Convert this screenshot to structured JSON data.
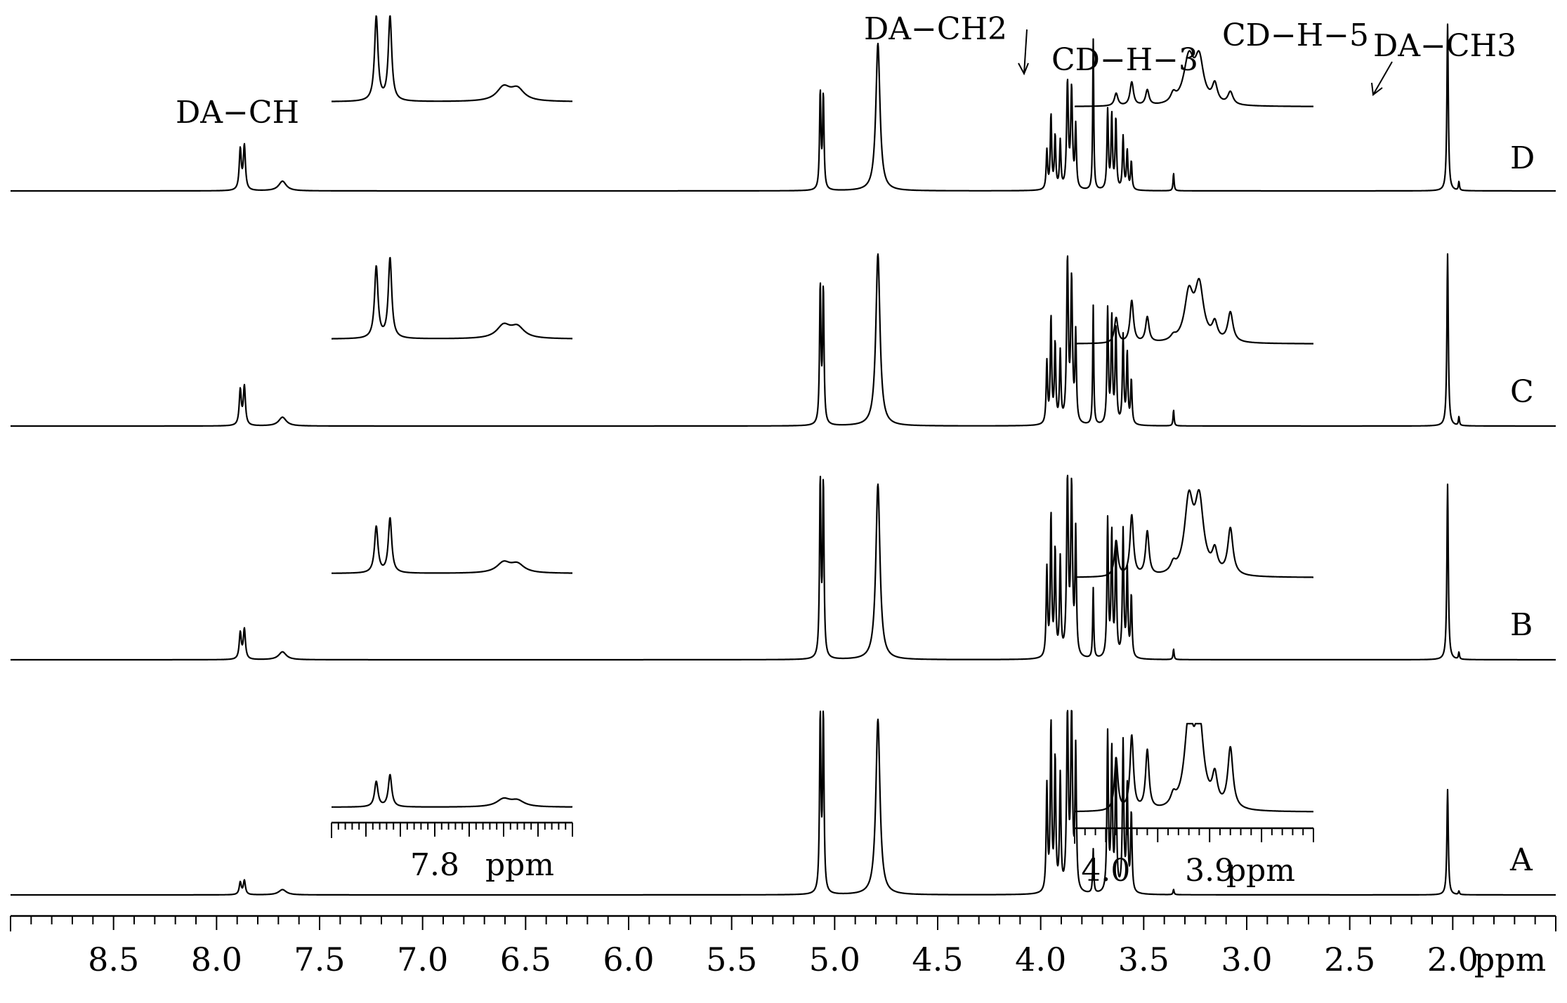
{
  "chart_data": {
    "type": "line",
    "x_axis": {
      "range": [
        9.0,
        1.5
      ],
      "reversed": true,
      "unit_label": "ppm",
      "major_ticks": [
        8.5,
        8.0,
        7.5,
        7.0,
        6.5,
        6.0,
        5.5,
        5.0,
        4.5,
        4.0,
        3.5,
        3.0,
        2.5,
        2.0
      ],
      "tick_labels": [
        "8.5",
        "8.0",
        "7.5",
        "7.0",
        "6.5",
        "6.0",
        "5.5",
        "5.0",
        "4.5",
        "4.0",
        "3.5",
        "3.0",
        "2.5",
        "2.0"
      ],
      "minor_step": 0.1
    },
    "grid": false,
    "legend": "none",
    "spectra": [
      {
        "label": "D",
        "peaks": [
          {
            "ppm": 7.885,
            "h": 0.23,
            "w": 0.006
          },
          {
            "ppm": 7.865,
            "h": 0.25,
            "w": 0.006
          },
          {
            "ppm": 7.68,
            "h": 0.055,
            "w": 0.022
          },
          {
            "ppm": 5.07,
            "h": 0.55,
            "w": 0.004
          },
          {
            "ppm": 5.055,
            "h": 0.53,
            "w": 0.004
          },
          {
            "ppm": 4.79,
            "h": 0.84,
            "w": 0.012
          },
          {
            "ppm": 3.97,
            "h": 0.22,
            "w": 0.004
          },
          {
            "ppm": 3.95,
            "h": 0.42,
            "w": 0.004
          },
          {
            "ppm": 3.93,
            "h": 0.3,
            "w": 0.004
          },
          {
            "ppm": 3.905,
            "h": 0.27,
            "w": 0.004
          },
          {
            "ppm": 3.87,
            "h": 0.6,
            "w": 0.005
          },
          {
            "ppm": 3.85,
            "h": 0.56,
            "w": 0.005
          },
          {
            "ppm": 3.83,
            "h": 0.35,
            "w": 0.004
          },
          {
            "ppm": 3.745,
            "h": 0.86,
            "w": 0.003
          },
          {
            "ppm": 3.675,
            "h": 0.45,
            "w": 0.004
          },
          {
            "ppm": 3.655,
            "h": 0.42,
            "w": 0.004
          },
          {
            "ppm": 3.635,
            "h": 0.4,
            "w": 0.004
          },
          {
            "ppm": 3.6,
            "h": 0.3,
            "w": 0.004
          },
          {
            "ppm": 3.58,
            "h": 0.22,
            "w": 0.004
          },
          {
            "ppm": 3.56,
            "h": 0.16,
            "w": 0.004
          },
          {
            "ppm": 3.355,
            "h": 0.1,
            "w": 0.003
          },
          {
            "ppm": 2.025,
            "h": 0.95,
            "w": 0.004
          },
          {
            "ppm": 1.97,
            "h": 0.05,
            "w": 0.003
          }
        ]
      },
      {
        "label": "C",
        "peaks": [
          {
            "ppm": 7.885,
            "h": 0.2,
            "w": 0.006
          },
          {
            "ppm": 7.865,
            "h": 0.22,
            "w": 0.006
          },
          {
            "ppm": 7.68,
            "h": 0.05,
            "w": 0.022
          },
          {
            "ppm": 5.07,
            "h": 0.78,
            "w": 0.004
          },
          {
            "ppm": 5.055,
            "h": 0.76,
            "w": 0.004
          },
          {
            "ppm": 4.79,
            "h": 0.98,
            "w": 0.012
          },
          {
            "ppm": 3.97,
            "h": 0.35,
            "w": 0.004
          },
          {
            "ppm": 3.95,
            "h": 0.6,
            "w": 0.004
          },
          {
            "ppm": 3.93,
            "h": 0.45,
            "w": 0.004
          },
          {
            "ppm": 3.905,
            "h": 0.4,
            "w": 0.004
          },
          {
            "ppm": 3.87,
            "h": 0.92,
            "w": 0.005
          },
          {
            "ppm": 3.85,
            "h": 0.8,
            "w": 0.005
          },
          {
            "ppm": 3.83,
            "h": 0.5,
            "w": 0.004
          },
          {
            "ppm": 3.745,
            "h": 0.68,
            "w": 0.003
          },
          {
            "ppm": 3.675,
            "h": 0.65,
            "w": 0.004
          },
          {
            "ppm": 3.655,
            "h": 0.6,
            "w": 0.004
          },
          {
            "ppm": 3.635,
            "h": 0.55,
            "w": 0.004
          },
          {
            "ppm": 3.6,
            "h": 0.5,
            "w": 0.004
          },
          {
            "ppm": 3.58,
            "h": 0.4,
            "w": 0.004
          },
          {
            "ppm": 3.56,
            "h": 0.25,
            "w": 0.004
          },
          {
            "ppm": 3.355,
            "h": 0.09,
            "w": 0.003
          },
          {
            "ppm": 2.025,
            "h": 0.98,
            "w": 0.004
          },
          {
            "ppm": 1.97,
            "h": 0.05,
            "w": 0.003
          }
        ]
      },
      {
        "label": "B",
        "peaks": [
          {
            "ppm": 7.885,
            "h": 0.15,
            "w": 0.006
          },
          {
            "ppm": 7.865,
            "h": 0.17,
            "w": 0.006
          },
          {
            "ppm": 7.68,
            "h": 0.045,
            "w": 0.022
          },
          {
            "ppm": 5.07,
            "h": 1.0,
            "w": 0.004
          },
          {
            "ppm": 5.055,
            "h": 0.98,
            "w": 0.004
          },
          {
            "ppm": 4.79,
            "h": 1.0,
            "w": 0.012
          },
          {
            "ppm": 3.97,
            "h": 0.5,
            "w": 0.004
          },
          {
            "ppm": 3.95,
            "h": 0.8,
            "w": 0.004
          },
          {
            "ppm": 3.93,
            "h": 0.6,
            "w": 0.004
          },
          {
            "ppm": 3.905,
            "h": 0.55,
            "w": 0.004
          },
          {
            "ppm": 3.87,
            "h": 1.0,
            "w": 0.005
          },
          {
            "ppm": 3.85,
            "h": 0.95,
            "w": 0.005
          },
          {
            "ppm": 3.83,
            "h": 0.7,
            "w": 0.004
          },
          {
            "ppm": 3.745,
            "h": 0.4,
            "w": 0.003
          },
          {
            "ppm": 3.675,
            "h": 0.78,
            "w": 0.004
          },
          {
            "ppm": 3.655,
            "h": 0.7,
            "w": 0.004
          },
          {
            "ppm": 3.635,
            "h": 0.65,
            "w": 0.004
          },
          {
            "ppm": 3.6,
            "h": 0.72,
            "w": 0.004
          },
          {
            "ppm": 3.58,
            "h": 0.5,
            "w": 0.004
          },
          {
            "ppm": 3.56,
            "h": 0.35,
            "w": 0.004
          },
          {
            "ppm": 3.355,
            "h": 0.06,
            "w": 0.003
          },
          {
            "ppm": 2.025,
            "h": 1.0,
            "w": 0.004
          },
          {
            "ppm": 1.97,
            "h": 0.04,
            "w": 0.003
          }
        ]
      },
      {
        "label": "A",
        "peaks": [
          {
            "ppm": 7.885,
            "h": 0.07,
            "w": 0.006
          },
          {
            "ppm": 7.865,
            "h": 0.08,
            "w": 0.006
          },
          {
            "ppm": 7.68,
            "h": 0.03,
            "w": 0.022
          },
          {
            "ppm": 5.07,
            "h": 1.0,
            "w": 0.004
          },
          {
            "ppm": 5.055,
            "h": 1.0,
            "w": 0.004
          },
          {
            "ppm": 4.79,
            "h": 1.0,
            "w": 0.012
          },
          {
            "ppm": 3.97,
            "h": 0.6,
            "w": 0.004
          },
          {
            "ppm": 3.95,
            "h": 0.95,
            "w": 0.004
          },
          {
            "ppm": 3.93,
            "h": 0.75,
            "w": 0.004
          },
          {
            "ppm": 3.905,
            "h": 0.65,
            "w": 0.004
          },
          {
            "ppm": 3.87,
            "h": 1.0,
            "w": 0.005
          },
          {
            "ppm": 3.85,
            "h": 1.0,
            "w": 0.005
          },
          {
            "ppm": 3.83,
            "h": 0.8,
            "w": 0.004
          },
          {
            "ppm": 3.745,
            "h": 0.25,
            "w": 0.003
          },
          {
            "ppm": 3.675,
            "h": 0.9,
            "w": 0.004
          },
          {
            "ppm": 3.655,
            "h": 0.8,
            "w": 0.004
          },
          {
            "ppm": 3.635,
            "h": 0.75,
            "w": 0.004
          },
          {
            "ppm": 3.6,
            "h": 0.85,
            "w": 0.004
          },
          {
            "ppm": 3.58,
            "h": 0.6,
            "w": 0.004
          },
          {
            "ppm": 3.56,
            "h": 0.45,
            "w": 0.004
          },
          {
            "ppm": 3.355,
            "h": 0.03,
            "w": 0.003
          },
          {
            "ppm": 2.025,
            "h": 0.6,
            "w": 0.004
          },
          {
            "ppm": 1.97,
            "h": 0.02,
            "w": 0.003
          }
        ]
      }
    ],
    "insets_left": {
      "range": [
        7.95,
        7.6
      ],
      "tick_labels": [
        {
          "ppm": 7.8,
          "text": "7.8"
        }
      ],
      "unit_label": "ppm",
      "traces": [
        {
          "label": "D",
          "peaks": [
            {
              "ppm": 7.885,
              "h": 1.0,
              "w": 0.003
            },
            {
              "ppm": 7.865,
              "h": 1.0,
              "w": 0.003
            },
            {
              "ppm": 7.7,
              "h": 0.16,
              "w": 0.012
            },
            {
              "ppm": 7.68,
              "h": 0.14,
              "w": 0.012
            }
          ]
        },
        {
          "label": "C",
          "peaks": [
            {
              "ppm": 7.885,
              "h": 0.85,
              "w": 0.003
            },
            {
              "ppm": 7.865,
              "h": 0.95,
              "w": 0.003
            },
            {
              "ppm": 7.7,
              "h": 0.15,
              "w": 0.012
            },
            {
              "ppm": 7.68,
              "h": 0.13,
              "w": 0.012
            }
          ]
        },
        {
          "label": "B",
          "peaks": [
            {
              "ppm": 7.885,
              "h": 0.55,
              "w": 0.003
            },
            {
              "ppm": 7.865,
              "h": 0.65,
              "w": 0.003
            },
            {
              "ppm": 7.7,
              "h": 0.12,
              "w": 0.012
            },
            {
              "ppm": 7.68,
              "h": 0.1,
              "w": 0.012
            }
          ]
        },
        {
          "label": "A",
          "peaks": [
            {
              "ppm": 7.885,
              "h": 0.3,
              "w": 0.003
            },
            {
              "ppm": 7.865,
              "h": 0.38,
              "w": 0.003
            },
            {
              "ppm": 7.7,
              "h": 0.09,
              "w": 0.012
            },
            {
              "ppm": 7.68,
              "h": 0.07,
              "w": 0.012
            }
          ]
        }
      ]
    },
    "insets_right": {
      "range": [
        4.03,
        3.8
      ],
      "tick_labels": [
        {
          "ppm": 4.0,
          "text": "4.0"
        },
        {
          "ppm": 3.9,
          "text": "3.9"
        }
      ],
      "unit_label": "ppm",
      "traces": [
        {
          "label": "D",
          "peaks": [
            {
              "ppm": 3.99,
              "h": 0.15,
              "w": 0.002
            },
            {
              "ppm": 3.975,
              "h": 0.28,
              "w": 0.002
            },
            {
              "ppm": 3.96,
              "h": 0.18,
              "w": 0.002
            },
            {
              "ppm": 3.935,
              "h": 0.1,
              "w": 0.003
            },
            {
              "ppm": 3.92,
              "h": 0.55,
              "w": 0.006
            },
            {
              "ppm": 3.91,
              "h": 0.5,
              "w": 0.005
            },
            {
              "ppm": 3.895,
              "h": 0.22,
              "w": 0.003
            },
            {
              "ppm": 3.88,
              "h": 0.15,
              "w": 0.003
            }
          ]
        },
        {
          "label": "C",
          "peaks": [
            {
              "ppm": 3.99,
              "h": 0.3,
              "w": 0.002
            },
            {
              "ppm": 3.975,
              "h": 0.5,
              "w": 0.002
            },
            {
              "ppm": 3.96,
              "h": 0.3,
              "w": 0.002
            },
            {
              "ppm": 3.935,
              "h": 0.05,
              "w": 0.003
            },
            {
              "ppm": 3.92,
              "h": 0.55,
              "w": 0.005
            },
            {
              "ppm": 3.91,
              "h": 0.65,
              "w": 0.005
            },
            {
              "ppm": 3.895,
              "h": 0.2,
              "w": 0.003
            },
            {
              "ppm": 3.88,
              "h": 0.35,
              "w": 0.003
            }
          ]
        },
        {
          "label": "B",
          "peaks": [
            {
              "ppm": 3.99,
              "h": 0.42,
              "w": 0.002
            },
            {
              "ppm": 3.975,
              "h": 0.72,
              "w": 0.002
            },
            {
              "ppm": 3.96,
              "h": 0.52,
              "w": 0.002
            },
            {
              "ppm": 3.935,
              "h": 0.1,
              "w": 0.003
            },
            {
              "ppm": 3.92,
              "h": 0.85,
              "w": 0.005
            },
            {
              "ppm": 3.91,
              "h": 0.85,
              "w": 0.005
            },
            {
              "ppm": 3.895,
              "h": 0.25,
              "w": 0.003
            },
            {
              "ppm": 3.88,
              "h": 0.55,
              "w": 0.003
            }
          ]
        },
        {
          "label": "A",
          "peaks": [
            {
              "ppm": 3.99,
              "h": 0.62,
              "w": 0.002
            },
            {
              "ppm": 3.975,
              "h": 0.88,
              "w": 0.002
            },
            {
              "ppm": 3.96,
              "h": 0.7,
              "w": 0.002
            },
            {
              "ppm": 3.935,
              "h": 0.12,
              "w": 0.003
            },
            {
              "ppm": 3.92,
              "h": 1.0,
              "w": 0.005
            },
            {
              "ppm": 3.91,
              "h": 1.0,
              "w": 0.005
            },
            {
              "ppm": 3.895,
              "h": 0.35,
              "w": 0.003
            },
            {
              "ppm": 3.88,
              "h": 0.72,
              "w": 0.003
            }
          ]
        }
      ]
    },
    "annotations": [
      {
        "text": "DA−CH",
        "ppm": 7.87
      },
      {
        "text": "DA−CH2",
        "ppm": 3.745
      },
      {
        "text": "CD−H−3",
        "ppm": 3.97
      },
      {
        "text": "CD−H−5",
        "ppm": 3.9
      },
      {
        "text": "DA−CH3",
        "ppm": 2.025
      }
    ]
  }
}
